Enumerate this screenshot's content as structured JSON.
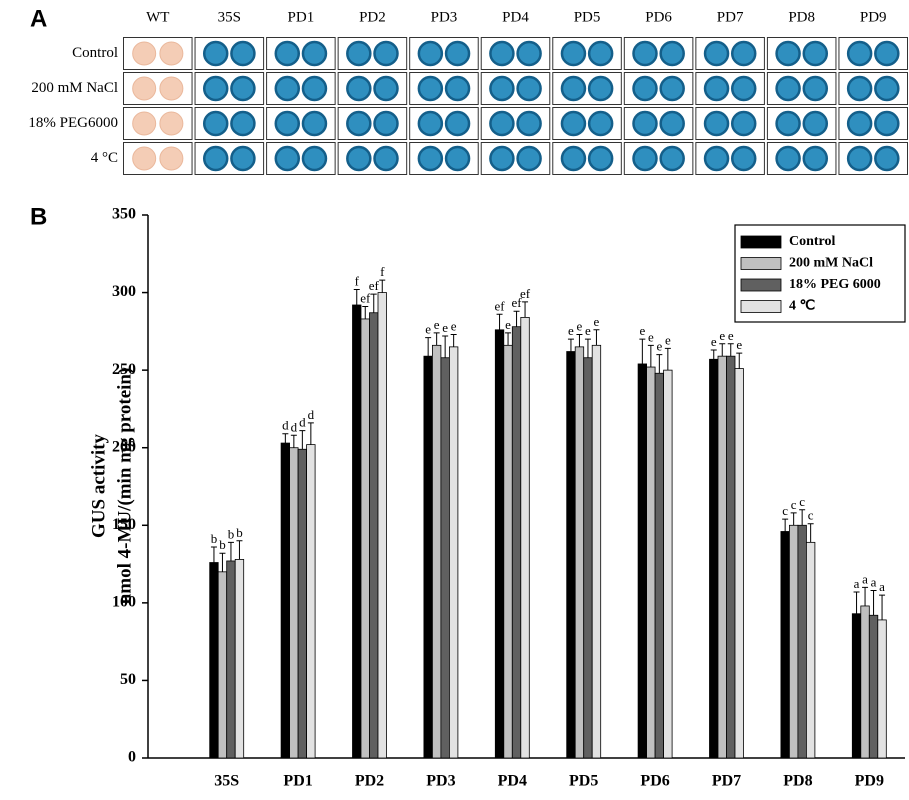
{
  "panel_a": {
    "label": "A",
    "columns": [
      "WT",
      "35S",
      "PD1",
      "PD2",
      "PD3",
      "PD4",
      "PD5",
      "PD6",
      "PD7",
      "PD8",
      "PD9"
    ],
    "rows": [
      "Control",
      "200 mM NaCl",
      "18% PEG6000",
      "4 °C"
    ]
  },
  "chart_data": {
    "type": "bar",
    "panel_label": "B",
    "y_label": [
      "GUS activity",
      "nmol 4-MU/(min mg protein)"
    ],
    "categories": [
      "35S",
      "PD1",
      "PD2",
      "PD3",
      "PD4",
      "PD5",
      "PD6",
      "PD7",
      "PD8",
      "PD9"
    ],
    "series": [
      {
        "name": "Control",
        "color": "#000000",
        "values": [
          126,
          203,
          292,
          259,
          276,
          262,
          254,
          257,
          146,
          93
        ],
        "errors": [
          10,
          6,
          10,
          12,
          10,
          8,
          16,
          6,
          8,
          14
        ],
        "letters": [
          "b",
          "d",
          "f",
          "e",
          "ef",
          "e",
          "e",
          "e",
          "c",
          "a"
        ]
      },
      {
        "name": "200 mM NaCl",
        "color": "#c0c0c0",
        "values": [
          120,
          200,
          283,
          266,
          266,
          265,
          252,
          259,
          150,
          98
        ],
        "errors": [
          12,
          8,
          8,
          8,
          8,
          8,
          14,
          8,
          8,
          12
        ],
        "letters": [
          "b",
          "d",
          "ef",
          "e",
          "e",
          "e",
          "e",
          "e",
          "c",
          "a"
        ]
      },
      {
        "name": "18% PEG 6000",
        "color": "#606060",
        "values": [
          127,
          199,
          287,
          258,
          278,
          258,
          248,
          259,
          150,
          92
        ],
        "errors": [
          12,
          12,
          12,
          14,
          10,
          12,
          12,
          8,
          10,
          16
        ],
        "letters": [
          "b",
          "d",
          "ef",
          "e",
          "ef",
          "e",
          "e",
          "e",
          "c",
          "a"
        ]
      },
      {
        "name": "4 ℃",
        "color": "#e2e2e2",
        "values": [
          128,
          202,
          300,
          265,
          284,
          266,
          250,
          251,
          139,
          89
        ],
        "errors": [
          12,
          14,
          8,
          8,
          10,
          10,
          14,
          10,
          12,
          16
        ],
        "letters": [
          "b",
          "d",
          "f",
          "e",
          "ef",
          "e",
          "e",
          "e",
          "c",
          "a"
        ]
      }
    ],
    "ylim": [
      0,
      350
    ],
    "yticks": [
      0,
      50,
      100,
      150,
      200,
      250,
      300,
      350
    ],
    "grid": false,
    "legend": "upper right"
  }
}
